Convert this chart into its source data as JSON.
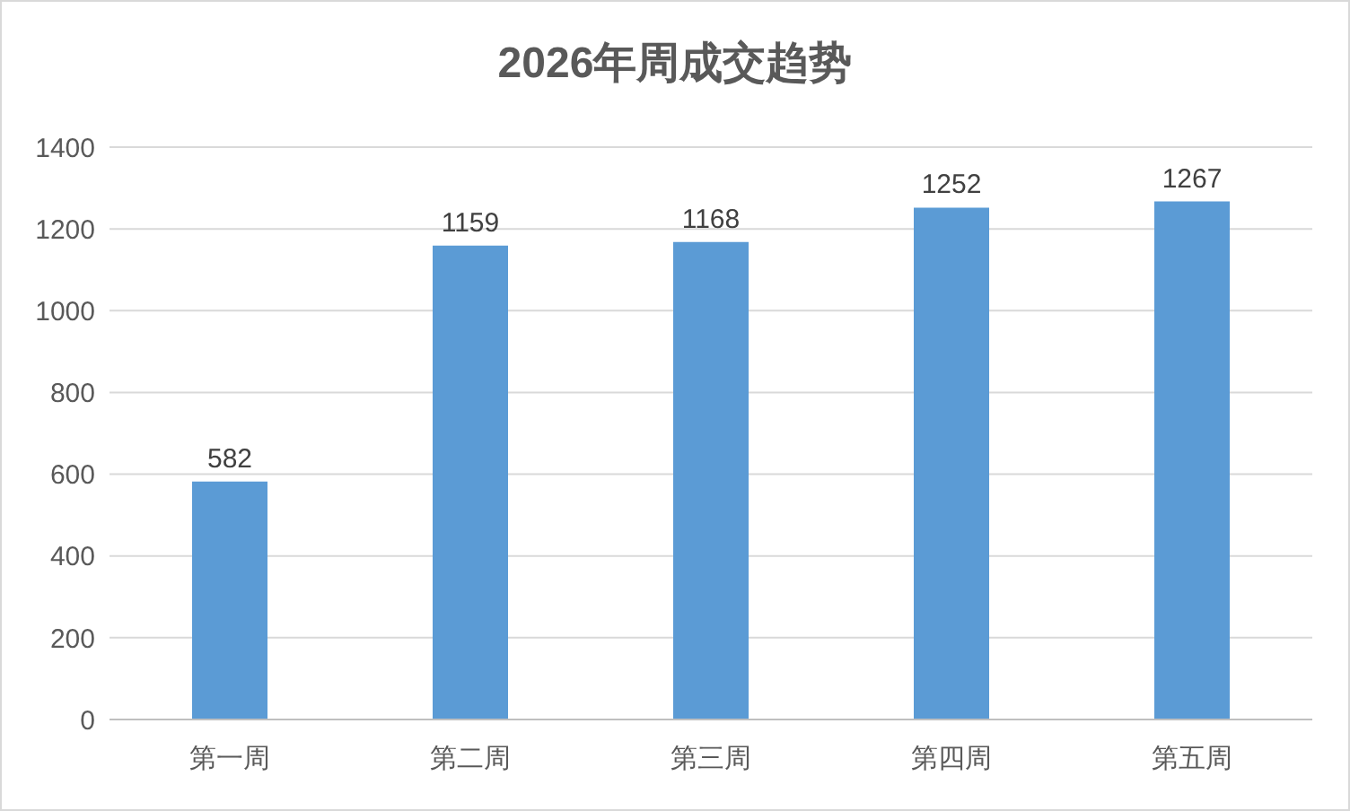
{
  "chart_data": {
    "type": "bar",
    "title": "2026年周成交趋势",
    "categories": [
      "第一周",
      "第二周",
      "第三周",
      "第四周",
      "第五周"
    ],
    "values": [
      582,
      1159,
      1168,
      1252,
      1267
    ],
    "color": "#5b9bd5",
    "ylim": [
      0,
      1400
    ],
    "yticks": [
      0,
      200,
      400,
      600,
      800,
      1000,
      1200,
      1400
    ],
    "grid": "y",
    "data_labels": true
  }
}
